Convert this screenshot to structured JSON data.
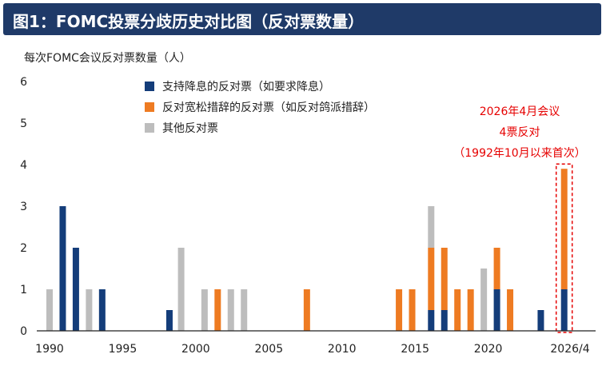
{
  "header": {
    "title": "图1：FOMC投票分歧历史对比图（反对票数量）"
  },
  "chart_data": {
    "type": "bar",
    "stacked": true,
    "ylabel": "每次FOMC会议反对票数量（人）",
    "ylim": [
      0,
      6
    ],
    "yticks": [
      "0",
      "1",
      "2",
      "3",
      "4",
      "5",
      "6"
    ],
    "xticks": [
      "1990",
      "1995",
      "2000",
      "2005",
      "2010",
      "2015",
      "2020",
      "2026/4"
    ],
    "x_axis_note": "approx. time axis, 1990 → 2026",
    "grid": false,
    "legend_position": "top-center",
    "colors": {
      "dovish": "#143d7a",
      "hawkish": "#ee7b22",
      "other": "#bdbdbd",
      "annotation": "#e60000",
      "title_bg": "#1f3a68"
    },
    "series": [
      {
        "name": "支持降息的反对票（如要求降息）",
        "key": "dovish"
      },
      {
        "name": "反对宽松措辞的反对票（如反对鸽派措辞）",
        "key": "hawkish"
      },
      {
        "name": "其他反对票",
        "key": "other"
      }
    ],
    "bars": [
      {
        "x": 1990.0,
        "dovish": 0,
        "hawkish": 0,
        "other": 1
      },
      {
        "x": 1990.9,
        "dovish": 3,
        "hawkish": 0,
        "other": 0
      },
      {
        "x": 1991.8,
        "dovish": 2,
        "hawkish": 0,
        "other": 0
      },
      {
        "x": 1992.7,
        "dovish": 0,
        "hawkish": 0,
        "other": 1
      },
      {
        "x": 1993.6,
        "dovish": 1,
        "hawkish": 0,
        "other": 0
      },
      {
        "x": 1998.2,
        "dovish": 0.5,
        "hawkish": 0,
        "other": 0
      },
      {
        "x": 1999.0,
        "dovish": 0,
        "hawkish": 0,
        "other": 2
      },
      {
        "x": 2000.6,
        "dovish": 0,
        "hawkish": 0,
        "other": 1
      },
      {
        "x": 2001.5,
        "dovish": 0,
        "hawkish": 1,
        "other": 0
      },
      {
        "x": 2002.4,
        "dovish": 0,
        "hawkish": 0,
        "other": 1
      },
      {
        "x": 2003.3,
        "dovish": 0,
        "hawkish": 0,
        "other": 1
      },
      {
        "x": 2007.6,
        "dovish": 0,
        "hawkish": 1,
        "other": 0
      },
      {
        "x": 2013.9,
        "dovish": 0,
        "hawkish": 1,
        "other": 0
      },
      {
        "x": 2014.8,
        "dovish": 0,
        "hawkish": 1,
        "other": 0
      },
      {
        "x": 2016.1,
        "dovish": 0.5,
        "hawkish": 1.5,
        "other": 1
      },
      {
        "x": 2017.0,
        "dovish": 0.5,
        "hawkish": 1.5,
        "other": 0
      },
      {
        "x": 2017.9,
        "dovish": 0,
        "hawkish": 1,
        "other": 0
      },
      {
        "x": 2018.8,
        "dovish": 0,
        "hawkish": 1,
        "other": 0
      },
      {
        "x": 2019.7,
        "dovish": 0,
        "hawkish": 0,
        "other": 1.5
      },
      {
        "x": 2020.6,
        "dovish": 1,
        "hawkish": 1,
        "other": 0
      },
      {
        "x": 2021.5,
        "dovish": 0,
        "hawkish": 1,
        "other": 0
      },
      {
        "x": 2023.6,
        "dovish": 0.5,
        "hawkish": 0,
        "other": 0
      },
      {
        "x": 2025.2,
        "dovish": 1,
        "hawkish": 2.9,
        "other": 0,
        "highlight": true
      }
    ],
    "annotation": {
      "lines": [
        "2026年4月会议",
        "4票反对",
        "（1992年10月以来首次）"
      ]
    }
  }
}
